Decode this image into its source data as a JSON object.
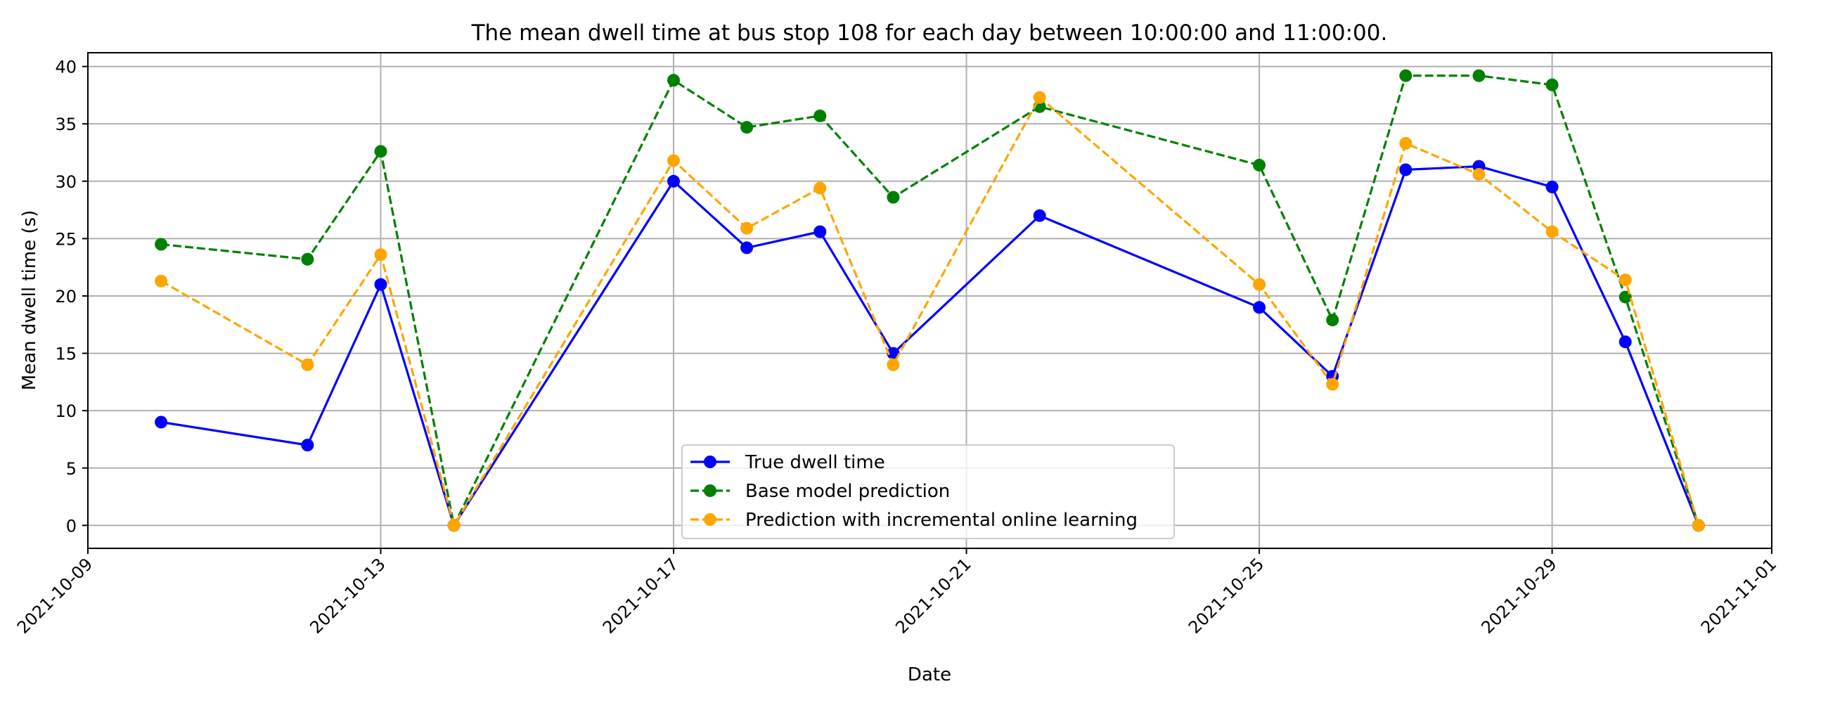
{
  "chart_data": {
    "type": "line",
    "title": "The mean dwell time at bus stop 108 for each day between 10:00:00 and 11:00:00.",
    "xlabel": "Date",
    "ylabel": "Mean dwell time (s)",
    "x_ticks": [
      "2021-10-09",
      "2021-10-13",
      "2021-10-17",
      "2021-10-21",
      "2021-10-25",
      "2021-10-29",
      "2021-11-01"
    ],
    "y_ticks": [
      0,
      5,
      10,
      15,
      20,
      25,
      30,
      35,
      40
    ],
    "xlim": [
      "2021-10-09T00:00",
      "2021-11-01T00:00"
    ],
    "ylim": [
      -2,
      41.2
    ],
    "grid": true,
    "legend_position": "lower-center",
    "x": [
      "2021-10-10",
      "2021-10-12",
      "2021-10-13",
      "2021-10-14",
      "2021-10-17",
      "2021-10-18",
      "2021-10-19",
      "2021-10-20",
      "2021-10-22",
      "2021-10-25",
      "2021-10-26",
      "2021-10-27",
      "2021-10-28",
      "2021-10-29",
      "2021-10-30",
      "2021-10-31"
    ],
    "series": [
      {
        "name": "True dwell time",
        "color": "#0000ff",
        "style": "solid",
        "values": [
          9,
          7,
          21,
          0,
          30,
          24.2,
          25.6,
          15,
          27,
          19,
          13,
          31,
          31.3,
          29.5,
          16,
          0
        ]
      },
      {
        "name": "Base model prediction",
        "color": "#008000",
        "style": "dashed",
        "values": [
          24.5,
          23.2,
          32.6,
          0,
          38.8,
          34.7,
          35.7,
          28.6,
          36.5,
          31.4,
          17.9,
          39.2,
          39.2,
          38.4,
          19.9,
          0
        ]
      },
      {
        "name": "Prediction with incremental online learning",
        "color": "#ffa500",
        "style": "dashed",
        "values": [
          21.3,
          14,
          23.6,
          0,
          31.8,
          25.9,
          29.4,
          14,
          37.3,
          21,
          12.3,
          33.3,
          30.6,
          25.6,
          21.4,
          0
        ]
      }
    ]
  }
}
